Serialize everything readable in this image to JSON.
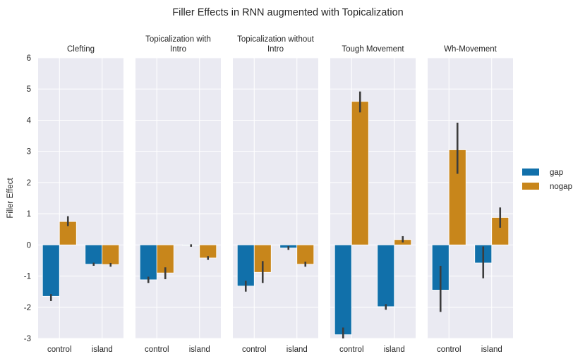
{
  "chart_data": {
    "type": "bar",
    "title": "Filler Effects in RNN augmented with Topicalization",
    "ylabel": "Filler Effect",
    "xlabel": "",
    "ylim": [
      -3,
      6
    ],
    "yticks": [
      "-3",
      "-2",
      "-1",
      "0",
      "1",
      "2",
      "3",
      "4",
      "5",
      "6"
    ],
    "grid": true,
    "legend_placement": "right",
    "categories": [
      "control",
      "island"
    ],
    "series": [
      {
        "name": "gap",
        "color": "#1170aa"
      },
      {
        "name": "nogap",
        "color": "#c8861b"
      }
    ],
    "panels": [
      {
        "title_lines": [
          "Clefting"
        ],
        "values": {
          "gap": [
            -1.65,
            -0.62
          ],
          "nogap": [
            0.75,
            -0.63
          ]
        },
        "error": {
          "gap": [
            [
              -1.8,
              -1.58
            ],
            [
              -0.67,
              -0.57
            ]
          ],
          "nogap": [
            [
              0.6,
              0.92
            ],
            [
              -0.7,
              -0.58
            ]
          ]
        }
      },
      {
        "title_lines": [
          "Topicalization with",
          "Intro"
        ],
        "values": {
          "gap": [
            -1.12,
            -0.02
          ],
          "nogap": [
            -0.9,
            -0.42
          ]
        },
        "error": {
          "gap": [
            [
              -1.22,
              -1.02
            ],
            [
              -0.06,
              0.02
            ]
          ],
          "nogap": [
            [
              -1.1,
              -0.72
            ],
            [
              -0.48,
              -0.36
            ]
          ]
        }
      },
      {
        "title_lines": [
          "Topicalization without",
          "Intro"
        ],
        "values": {
          "gap": [
            -1.32,
            -0.1
          ],
          "nogap": [
            -0.88,
            -0.62
          ]
        },
        "error": {
          "gap": [
            [
              -1.5,
              -1.15
            ],
            [
              -0.16,
              -0.04
            ]
          ],
          "nogap": [
            [
              -1.22,
              -0.52
            ],
            [
              -0.7,
              -0.54
            ]
          ]
        }
      },
      {
        "title_lines": [
          "Tough Movement"
        ],
        "values": {
          "gap": [
            -2.88,
            -1.98
          ],
          "nogap": [
            4.6,
            0.17
          ]
        },
        "error": {
          "gap": [
            [
              -3.0,
              -2.65
            ],
            [
              -2.08,
              -1.9
            ]
          ],
          "nogap": [
            [
              4.25,
              4.92
            ],
            [
              0.08,
              0.28
            ]
          ]
        }
      },
      {
        "title_lines": [
          "Wh-Movement"
        ],
        "values": {
          "gap": [
            -1.45,
            -0.58
          ],
          "nogap": [
            3.05,
            0.88
          ]
        },
        "error": {
          "gap": [
            [
              -2.15,
              -0.67
            ],
            [
              -1.07,
              -0.05
            ]
          ],
          "nogap": [
            [
              2.28,
              3.92
            ],
            [
              0.55,
              1.2
            ]
          ]
        }
      }
    ]
  }
}
